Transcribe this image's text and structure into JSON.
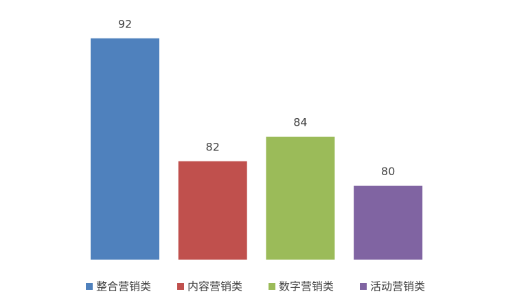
{
  "chart_data": {
    "type": "bar",
    "series": [
      {
        "name": "整合营销类",
        "color": "#4f81bd",
        "values": [
          92
        ]
      },
      {
        "name": "内容营销类",
        "color": "#c0504d",
        "values": [
          82
        ]
      },
      {
        "name": "数字营销类",
        "color": "#9bbb59",
        "values": [
          84
        ]
      },
      {
        "name": "活动营销类",
        "color": "#8064a2",
        "values": [
          80
        ]
      }
    ],
    "ylim": [
      74,
      94
    ],
    "legend": "bottom"
  }
}
